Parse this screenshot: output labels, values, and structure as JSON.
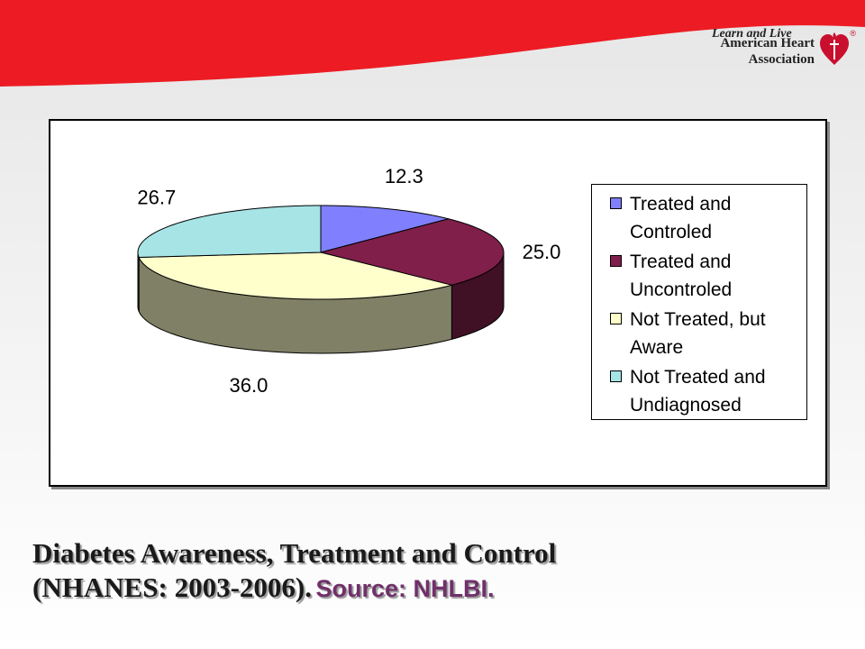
{
  "logo": {
    "line1": "American Heart",
    "line2": "Association",
    "tagline": "Learn and Live",
    "registered": "®"
  },
  "colors": {
    "brand_red": "#ed1c24",
    "treated_controlled": "#8080ff",
    "treated_uncontrolled": "#7f1f4a",
    "not_treated_aware": "#ffffcc",
    "not_treated_undiagnosed": "#a6e4e6",
    "caption_source": "#70306a"
  },
  "chart_data": {
    "type": "pie",
    "style": "3d",
    "title": "",
    "legend_position": "right",
    "categories": [
      "Treated and Controled",
      "Treated and Uncontroled",
      "Not Treated, but Aware",
      "Not Treated and Undiagnosed"
    ],
    "values": [
      12.3,
      25.0,
      36.0,
      26.7
    ],
    "value_labels": [
      "12.3",
      "25.0",
      "36.0",
      "26.7"
    ]
  },
  "caption": {
    "line1": "Diabetes Awareness, Treatment and Control",
    "line2_main": "(NHANES: 2003-2006).",
    "line2_source": "Source: NHLBI."
  }
}
